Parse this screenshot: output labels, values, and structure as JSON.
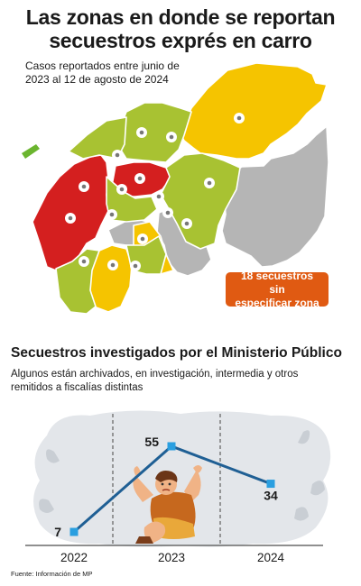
{
  "header": {
    "title_line1": "Las zonas en donde se reportan",
    "title_line2": "secuestros exprés en carro",
    "subtitle_line1": "Casos reportados entre junio de",
    "subtitle_line2": "2023 al 12 de agosto de 2024"
  },
  "map": {
    "colors": {
      "red": "#d41f1f",
      "lime": "#a8c232",
      "yellow": "#f5c400",
      "gray": "#b5b5b5",
      "pin": "#ffffff"
    },
    "badge_line1": "18 secuestros sin",
    "badge_line2": "especificar zona",
    "badge_color": "#e05a12"
  },
  "section": {
    "title": "Secuestros investigados por el Ministerio Público",
    "subtitle_line1": "Algunos están archivados, en investigación, intermedia y otros",
    "subtitle_line2": "remitidos a fiscalías distintas"
  },
  "chart_data": {
    "type": "line",
    "title": "Secuestros investigados por el Ministerio Público",
    "categories": [
      "2022",
      "2023",
      "2024"
    ],
    "series": [
      {
        "values": [
          7,
          55,
          34
        ]
      }
    ],
    "ylim": [
      0,
      60
    ],
    "grid": false,
    "line_color": "#1f5f94",
    "marker_color": "#2a9fe0"
  },
  "footer": {
    "source": "Fuente: Información de MP"
  }
}
